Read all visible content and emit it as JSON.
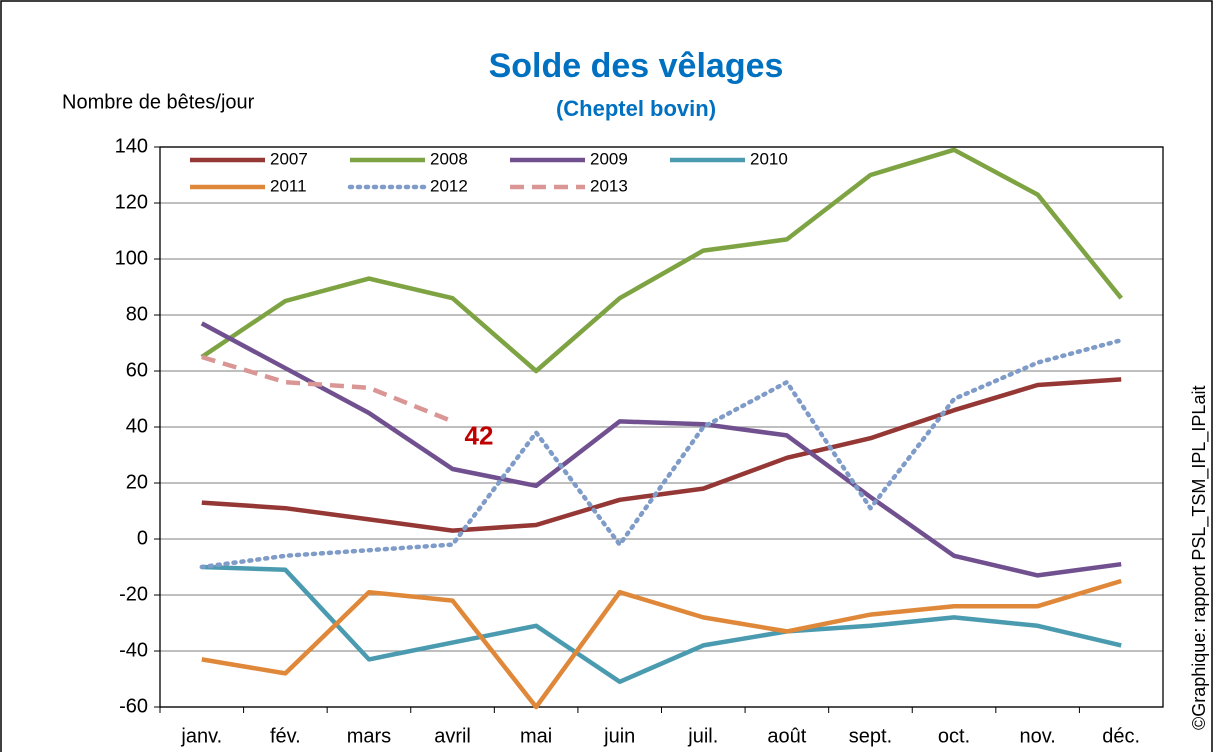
{
  "chart_data": {
    "type": "line",
    "title": "Solde des vêlages",
    "subtitle": "(Cheptel bovin)",
    "y_label": "Nombre de bêtes/jour",
    "source": "©Graphique: rapport PSL_TSM_IPL_IPLait",
    "categories": [
      "janv.",
      "fév.",
      "mars",
      "avril",
      "mai",
      "juin",
      "juil.",
      "août",
      "sept.",
      "oct.",
      "nov.",
      "déc."
    ],
    "ylim": [
      -60,
      140
    ],
    "yticks": [
      -60,
      -40,
      -20,
      0,
      20,
      40,
      60,
      80,
      100,
      120,
      140
    ],
    "grid": true,
    "legend": "top",
    "series": [
      {
        "name": "2007",
        "color": "#953735",
        "style": "solid",
        "values": [
          13,
          11,
          7,
          3,
          5,
          14,
          18,
          29,
          36,
          46,
          55,
          57
        ]
      },
      {
        "name": "2008",
        "color": "#7ea342",
        "style": "solid",
        "values": [
          65,
          85,
          93,
          86,
          60,
          86,
          103,
          107,
          130,
          139,
          123,
          86
        ]
      },
      {
        "name": "2009",
        "color": "#71508f",
        "style": "solid",
        "values": [
          77,
          61,
          45,
          25,
          19,
          42,
          41,
          37,
          15,
          -6,
          -13,
          -9
        ]
      },
      {
        "name": "2010",
        "color": "#4b9bb0",
        "style": "solid",
        "values": [
          -10,
          -11,
          -43,
          -37,
          -31,
          -51,
          -38,
          -33,
          -31,
          -28,
          -31,
          -38
        ]
      },
      {
        "name": "2011",
        "color": "#e0883a",
        "style": "solid",
        "values": [
          -43,
          -48,
          -19,
          -22,
          -60,
          -19,
          -28,
          -33,
          -27,
          -24,
          -24,
          -15
        ]
      },
      {
        "name": "2012",
        "color": "#7f9bc8",
        "style": "dotted",
        "values": [
          -10,
          -6,
          -4,
          -2,
          38,
          -2,
          40,
          56,
          11,
          50,
          63,
          71
        ]
      },
      {
        "name": "2013",
        "color": "#d99694",
        "style": "dashed",
        "values": [
          65,
          56,
          54,
          42,
          null,
          null,
          null,
          null,
          null,
          null,
          null,
          null
        ]
      }
    ],
    "annotations": [
      {
        "text": "42",
        "color": "#c00000"
      }
    ]
  }
}
